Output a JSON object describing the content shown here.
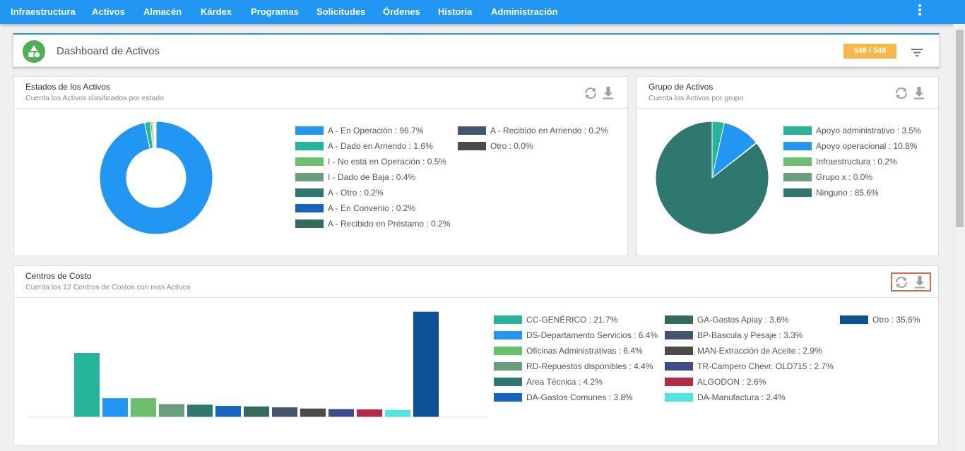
{
  "nav": {
    "items": [
      "Infraestructura",
      "Activos",
      "Almacén",
      "Kárdex",
      "Programas",
      "Solicitudes",
      "Órdenes",
      "Historia",
      "Administración"
    ]
  },
  "header": {
    "title": "Dashboard de Activos",
    "badge": "548 / 548",
    "icon": "shapes-icon"
  },
  "estados": {
    "title": "Estados de los Activos",
    "subtitle": "Cuenta los Activos clasificados por estado",
    "legend": [
      {
        "label": "A - En Operación : 96.7%",
        "color": "#2196f3"
      },
      {
        "label": "A - Dado en Arriendo : 1.6%",
        "color": "#26b59a"
      },
      {
        "label": "I - No está en Operación : 0.5%",
        "color": "#6cc06d"
      },
      {
        "label": "I - Dado de Baja : 0.4%",
        "color": "#6a9e7f"
      },
      {
        "label": "A - Otro : 0.2%",
        "color": "#2e7870"
      },
      {
        "label": "A - En Convenio : 0.2%",
        "color": "#1565c0"
      },
      {
        "label": "A - Recibido en Préstamo : 0.2%",
        "color": "#346b5c"
      },
      {
        "label": "A - Recibido en Arriendo : 0.2%",
        "color": "#45546f"
      },
      {
        "label": "Otro : 0.0%",
        "color": "#4e4a4a"
      }
    ]
  },
  "grupo": {
    "title": "Grupo de Activos",
    "subtitle": "Cuenta los Activos por grupo",
    "legend": [
      {
        "label": "Apoyo administrativo : 3.5%",
        "color": "#26b59a"
      },
      {
        "label": "Apoyo operacional : 10.8%",
        "color": "#2196f3"
      },
      {
        "label": "Infraestructura : 0.2%",
        "color": "#6cc06d"
      },
      {
        "label": "Grupo x : 0.0%",
        "color": "#6a9e7f"
      },
      {
        "label": "Ninguno : 85.6%",
        "color": "#2e7870"
      }
    ]
  },
  "centros": {
    "title": "Centros de Costo",
    "subtitle": "Cuenta los 12 Centros de Costos con mas Activos",
    "legend": [
      {
        "label": "CC-GENÉRICO : 21.7%",
        "color": "#26b59a"
      },
      {
        "label": "DS-Departamento Servicios : 6.4%",
        "color": "#2196f3"
      },
      {
        "label": "Oficinas  Administrativas : 6.4%",
        "color": "#6cc06d"
      },
      {
        "label": "RD-Repuestos disponibles : 4.4%",
        "color": "#6a9e7f"
      },
      {
        "label": "Area Técnica : 4.2%",
        "color": "#2e7870"
      },
      {
        "label": "DA-Gastos Comunes : 3.8%",
        "color": "#1565c0"
      },
      {
        "label": "GA-Gastos Apiay : 3.6%",
        "color": "#346b5c"
      },
      {
        "label": "BP-Bascula y Pesaje : 3.3%",
        "color": "#45546f"
      },
      {
        "label": "MAN-Extracción de Aceite : 2.9%",
        "color": "#4e4a4a"
      },
      {
        "label": "TR-Campero Chevr. OLD715 : 2.7%",
        "color": "#3f4c8b"
      },
      {
        "label": "ALGODON : 2.6%",
        "color": "#b52a44"
      },
      {
        "label": "DA-Manufactura : 2.4%",
        "color": "#4ee6df"
      },
      {
        "label": "Otro : 35.6%",
        "color": "#0b5394"
      }
    ]
  },
  "chart_data": [
    {
      "type": "pie",
      "variant": "donut",
      "labels": [
        "A - En Operación",
        "A - Dado en Arriendo",
        "I - No está en Operación",
        "I - Dado de Baja",
        "A - Otro",
        "A - En Convenio",
        "A - Recibido en Préstamo",
        "A - Recibido en Arriendo",
        "Otro"
      ],
      "values": [
        96.7,
        1.6,
        0.5,
        0.4,
        0.2,
        0.2,
        0.2,
        0.2,
        0.0
      ],
      "colors": [
        "#2196f3",
        "#26b59a",
        "#6cc06d",
        "#6a9e7f",
        "#2e7870",
        "#1565c0",
        "#346b5c",
        "#45546f",
        "#4e4a4a"
      ],
      "title": "Estados de los Activos",
      "legend_position": "right"
    },
    {
      "type": "pie",
      "labels": [
        "Apoyo administrativo",
        "Apoyo operacional",
        "Infraestructura",
        "Grupo x",
        "Ninguno"
      ],
      "values": [
        3.5,
        10.8,
        0.2,
        0.0,
        85.6
      ],
      "colors": [
        "#26b59a",
        "#2196f3",
        "#6cc06d",
        "#6a9e7f",
        "#2e7870"
      ],
      "title": "Grupo de Activos",
      "legend_position": "right"
    },
    {
      "type": "bar",
      "categories": [
        "CC-GENÉRICO",
        "DS-Departamento Servicios",
        "Oficinas  Administrativas",
        "RD-Repuestos disponibles",
        "Area Técnica",
        "DA-Gastos Comunes",
        "GA-Gastos Apiay",
        "BP-Bascula y Pesaje",
        "MAN-Extracción de Aceite",
        "TR-Campero Chevr. OLD715",
        "ALGODON",
        "DA-Manufactura",
        "Otro"
      ],
      "values": [
        21.7,
        6.4,
        6.4,
        4.4,
        4.2,
        3.8,
        3.6,
        3.3,
        2.9,
        2.7,
        2.6,
        2.4,
        35.6
      ],
      "colors": [
        "#26b59a",
        "#2196f3",
        "#6cc06d",
        "#6a9e7f",
        "#2e7870",
        "#1565c0",
        "#346b5c",
        "#45546f",
        "#4e4a4a",
        "#3f4c8b",
        "#b52a44",
        "#4ee6df",
        "#0b5394"
      ],
      "title": "Centros de Costo",
      "ylim": [
        0,
        36
      ],
      "grid": false,
      "legend_position": "right"
    }
  ]
}
